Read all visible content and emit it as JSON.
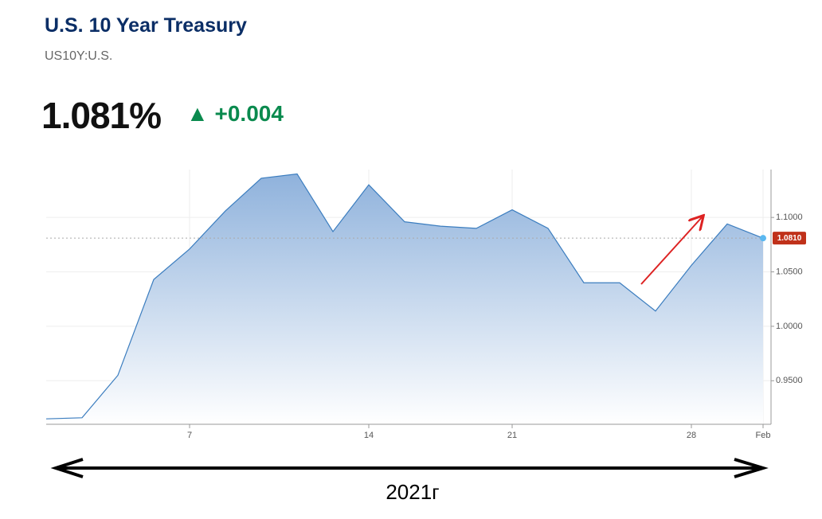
{
  "header": {
    "title": "U.S. 10 Year Treasury",
    "symbol": "US10Y:U.S.",
    "price": "1.081%",
    "change": "+0.004"
  },
  "chart_data": {
    "type": "area",
    "categories": [
      null,
      null,
      null,
      null,
      "7",
      null,
      null,
      null,
      null,
      "14",
      null,
      null,
      null,
      "21",
      null,
      null,
      null,
      null,
      "28",
      null,
      "Feb"
    ],
    "values": [
      0.915,
      0.916,
      0.955,
      1.043,
      1.071,
      1.106,
      1.136,
      1.14,
      1.087,
      1.13,
      1.096,
      1.092,
      1.09,
      1.107,
      1.09,
      1.04,
      1.04,
      1.014,
      1.056,
      1.094,
      1.081
    ],
    "last_value_label": "1.0810",
    "color": "#3b7dbf",
    "ylim": [
      0.91,
      1.144
    ],
    "yticks": [
      {
        "value": 0.95,
        "label": "0.9500"
      },
      {
        "value": 1.0,
        "label": "1.0000"
      },
      {
        "value": 1.05,
        "label": "1.0500"
      },
      {
        "value": 1.1,
        "label": "1.1000"
      }
    ],
    "grid": true
  },
  "annotation": {
    "year": "2021г"
  }
}
